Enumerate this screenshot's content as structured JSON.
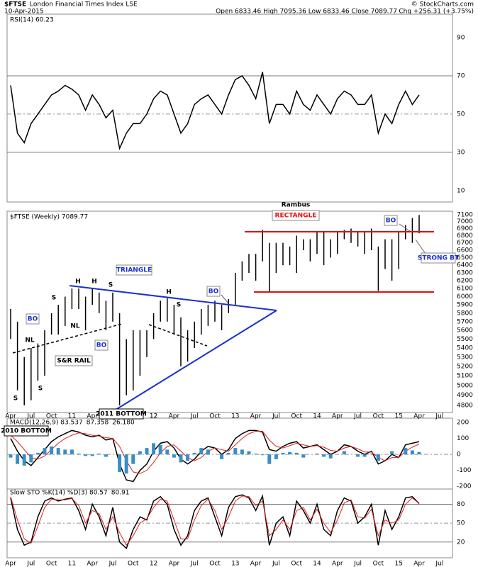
{
  "header": {
    "symbol": "$FTSE",
    "name": "London Financial Times Index LSE",
    "date": "10-Apr-2015",
    "quote": "Open 6833.46 High 7095.36 Low 6833.46 Close 7089.77",
    "change": "Chg +256.31 (+3.75%)",
    "credit": "© StockCharts.com"
  },
  "chart_data": [
    {
      "type": "line",
      "ylim": [
        4,
        100
      ],
      "yticks": [
        10,
        30,
        50,
        70,
        90
      ],
      "hlines": [
        30,
        70
      ],
      "dashed_hlines": [
        50
      ],
      "series": [
        {
          "name": "RSI(14) 60.23",
          "color": "#000000",
          "values": [
            65,
            40,
            35,
            45,
            50,
            55,
            60,
            62,
            65,
            63,
            60,
            52,
            60,
            55,
            48,
            52,
            32,
            40,
            45,
            45,
            50,
            58,
            62,
            60,
            50,
            40,
            45,
            55,
            58,
            60,
            55,
            50,
            60,
            68,
            70,
            65,
            58,
            72,
            45,
            55,
            55,
            50,
            62,
            55,
            52,
            60,
            55,
            50,
            58,
            62,
            60,
            55,
            55,
            60,
            40,
            50,
            45,
            55,
            62,
            55,
            60,
            null,
            null,
            null
          ]
        }
      ]
    },
    {
      "type": "range",
      "title": "$FTSE (Weekly) 7089.77",
      "log_scale": true,
      "ylim": [
        4730,
        7150
      ],
      "yticks": [
        4800,
        4900,
        5000,
        5100,
        5200,
        5300,
        5400,
        5500,
        5600,
        5700,
        5800,
        5900,
        6000,
        6100,
        6200,
        6300,
        6400,
        6500,
        6600,
        6700,
        6800,
        6900,
        7000,
        7100
      ],
      "color": "#000000",
      "categories": [
        "Apr",
        null,
        null,
        "Jul",
        null,
        null,
        "Oct",
        null,
        null,
        "11",
        null,
        null,
        "Apr",
        null,
        null,
        "Jul",
        null,
        null,
        "Oct",
        null,
        null,
        "12",
        null,
        null,
        "Apr",
        null,
        null,
        "Jul",
        null,
        null,
        "Oct",
        null,
        null,
        "13",
        null,
        null,
        "Apr",
        null,
        null,
        "Jul",
        null,
        null,
        "Oct",
        null,
        null,
        "14",
        null,
        null,
        "Apr",
        null,
        null,
        "Jul",
        null,
        null,
        "Oct",
        null,
        null,
        "15",
        null,
        null,
        "Apr",
        null,
        null,
        "Jul"
      ],
      "high": [
        5850,
        5700,
        5300,
        5400,
        5450,
        5600,
        5800,
        5900,
        6000,
        6100,
        6100,
        6000,
        6100,
        6050,
        5950,
        6050,
        5800,
        5500,
        5600,
        5600,
        5600,
        5800,
        5950,
        5980,
        5900,
        5750,
        5600,
        5700,
        5850,
        5900,
        5950,
        5900,
        5970,
        6300,
        6450,
        6550,
        6550,
        6880,
        6700,
        6700,
        6700,
        6650,
        6800,
        6750,
        6750,
        6850,
        6850,
        6750,
        6850,
        6880,
        6900,
        6850,
        6850,
        6900,
        6650,
        6750,
        6750,
        6850,
        6950,
        7050,
        7095,
        null,
        null,
        null
      ],
      "low": [
        5500,
        4950,
        4800,
        4850,
        5050,
        5100,
        5550,
        5550,
        5650,
        5850,
        5850,
        5600,
        5900,
        5800,
        5600,
        5700,
        4800,
        4900,
        4950,
        5100,
        5300,
        5500,
        5700,
        5700,
        5550,
        5200,
        5250,
        5400,
        5550,
        5650,
        5700,
        5600,
        5800,
        5900,
        6200,
        6300,
        6200,
        6450,
        6050,
        6300,
        6400,
        6400,
        6300,
        6600,
        6450,
        6550,
        6400,
        6500,
        6550,
        6750,
        6700,
        6650,
        6550,
        6600,
        6070,
        6350,
        6200,
        6350,
        6750,
        6700,
        6833,
        null,
        null,
        null
      ],
      "annotations": [
        "Rambus",
        "RECTANGLE",
        "TRIANGLE",
        "BO",
        "BO",
        "BO",
        "BO",
        "H",
        "H",
        "H",
        "S",
        "S",
        "S",
        "S",
        "S",
        "NL",
        "NL",
        "S&R RAIL",
        "STRONG BT",
        "2011 BOTTOM",
        "2010 BOTTOM"
      ]
    },
    {
      "type": "line",
      "ylim": [
        -217,
        227
      ],
      "yticks": [
        -200,
        -100,
        0,
        100,
        200
      ],
      "dashed_hlines": [
        0
      ],
      "series": [
        {
          "name": "MACD(12,26,9) 83.537",
          "color": "#000000",
          "values": [
            100,
            20,
            -40,
            -70,
            -20,
            30,
            80,
            110,
            130,
            150,
            140,
            120,
            110,
            120,
            90,
            100,
            -60,
            -160,
            -170,
            -100,
            -60,
            20,
            70,
            80,
            40,
            -30,
            -60,
            -30,
            20,
            50,
            40,
            0,
            30,
            100,
            130,
            150,
            150,
            140,
            30,
            20,
            50,
            70,
            80,
            40,
            50,
            60,
            30,
            0,
            20,
            60,
            50,
            20,
            0,
            20,
            -60,
            -40,
            0,
            -20,
            60,
            70,
            80,
            null,
            null,
            null
          ]
        },
        {
          "name": "87.358",
          "color": "#e02020",
          "values": [
            120,
            80,
            30,
            -20,
            -30,
            -10,
            30,
            70,
            100,
            120,
            135,
            130,
            120,
            115,
            105,
            100,
            50,
            -40,
            -110,
            -120,
            -100,
            -50,
            10,
            50,
            60,
            20,
            -20,
            -40,
            -20,
            20,
            40,
            30,
            20,
            60,
            100,
            130,
            145,
            145,
            90,
            50,
            40,
            55,
            70,
            60,
            50,
            55,
            45,
            25,
            20,
            40,
            50,
            35,
            15,
            15,
            -20,
            -40,
            -20,
            -20,
            20,
            45,
            65,
            null,
            null,
            null
          ]
        },
        {
          "name": "26.180",
          "color": "#3a8ec4",
          "style": "bar",
          "values": [
            -20,
            -60,
            -70,
            -50,
            10,
            40,
            50,
            40,
            30,
            30,
            5,
            -10,
            -10,
            5,
            -15,
            0,
            -110,
            -120,
            -60,
            20,
            40,
            70,
            60,
            30,
            -20,
            -50,
            -40,
            10,
            40,
            30,
            0,
            -30,
            10,
            40,
            30,
            20,
            5,
            -5,
            -60,
            -30,
            10,
            15,
            10,
            -20,
            0,
            5,
            -15,
            -25,
            0,
            20,
            0,
            -15,
            -15,
            5,
            -40,
            0,
            20,
            0,
            40,
            25,
            15,
            null,
            null,
            null
          ]
        }
      ]
    },
    {
      "type": "line",
      "ylim": [
        -5,
        103
      ],
      "yticks": [
        20,
        50,
        80
      ],
      "hlines": [
        20,
        80
      ],
      "dashed_hlines": [
        50
      ],
      "categories": [
        "Apr",
        null,
        null,
        "Jul",
        null,
        null,
        "Oct",
        null,
        null,
        "11",
        null,
        null,
        "Apr",
        null,
        null,
        "Jul",
        null,
        null,
        "Oct",
        null,
        null,
        "12",
        null,
        null,
        "Apr",
        null,
        null,
        "Jul",
        null,
        null,
        "Oct",
        null,
        null,
        "13",
        null,
        null,
        "Apr",
        null,
        null,
        "Jul",
        null,
        null,
        "Oct",
        null,
        null,
        "14",
        null,
        null,
        "Apr",
        null,
        null,
        "Jul",
        null,
        null,
        "Oct",
        null,
        null,
        "15",
        null,
        null,
        "Apr",
        null,
        null,
        "Jul"
      ],
      "series": [
        {
          "name": "Slow STO %K(14) %D(3) 80.57",
          "color": "#000000",
          "values": [
            90,
            40,
            15,
            20,
            60,
            85,
            90,
            85,
            88,
            90,
            70,
            40,
            80,
            60,
            30,
            75,
            20,
            10,
            40,
            60,
            55,
            85,
            92,
            80,
            40,
            15,
            30,
            70,
            85,
            90,
            60,
            30,
            75,
            92,
            95,
            90,
            70,
            93,
            15,
            50,
            60,
            30,
            85,
            70,
            50,
            80,
            40,
            30,
            70,
            90,
            85,
            50,
            60,
            80,
            15,
            70,
            40,
            60,
            90,
            92,
            81,
            null,
            null,
            null
          ]
        },
        {
          "name": "80.91",
          "color": "#e02020",
          "values": [
            92,
            55,
            25,
            18,
            45,
            75,
            88,
            87,
            87,
            89,
            78,
            50,
            70,
            65,
            40,
            60,
            35,
            15,
            30,
            50,
            57,
            75,
            88,
            85,
            55,
            25,
            25,
            55,
            78,
            88,
            70,
            40,
            60,
            85,
            93,
            92,
            78,
            85,
            30,
            40,
            55,
            40,
            70,
            75,
            55,
            72,
            50,
            35,
            55,
            82,
            87,
            60,
            58,
            72,
            30,
            55,
            50,
            55,
            80,
            90,
            81,
            null,
            null,
            null
          ]
        }
      ]
    }
  ]
}
